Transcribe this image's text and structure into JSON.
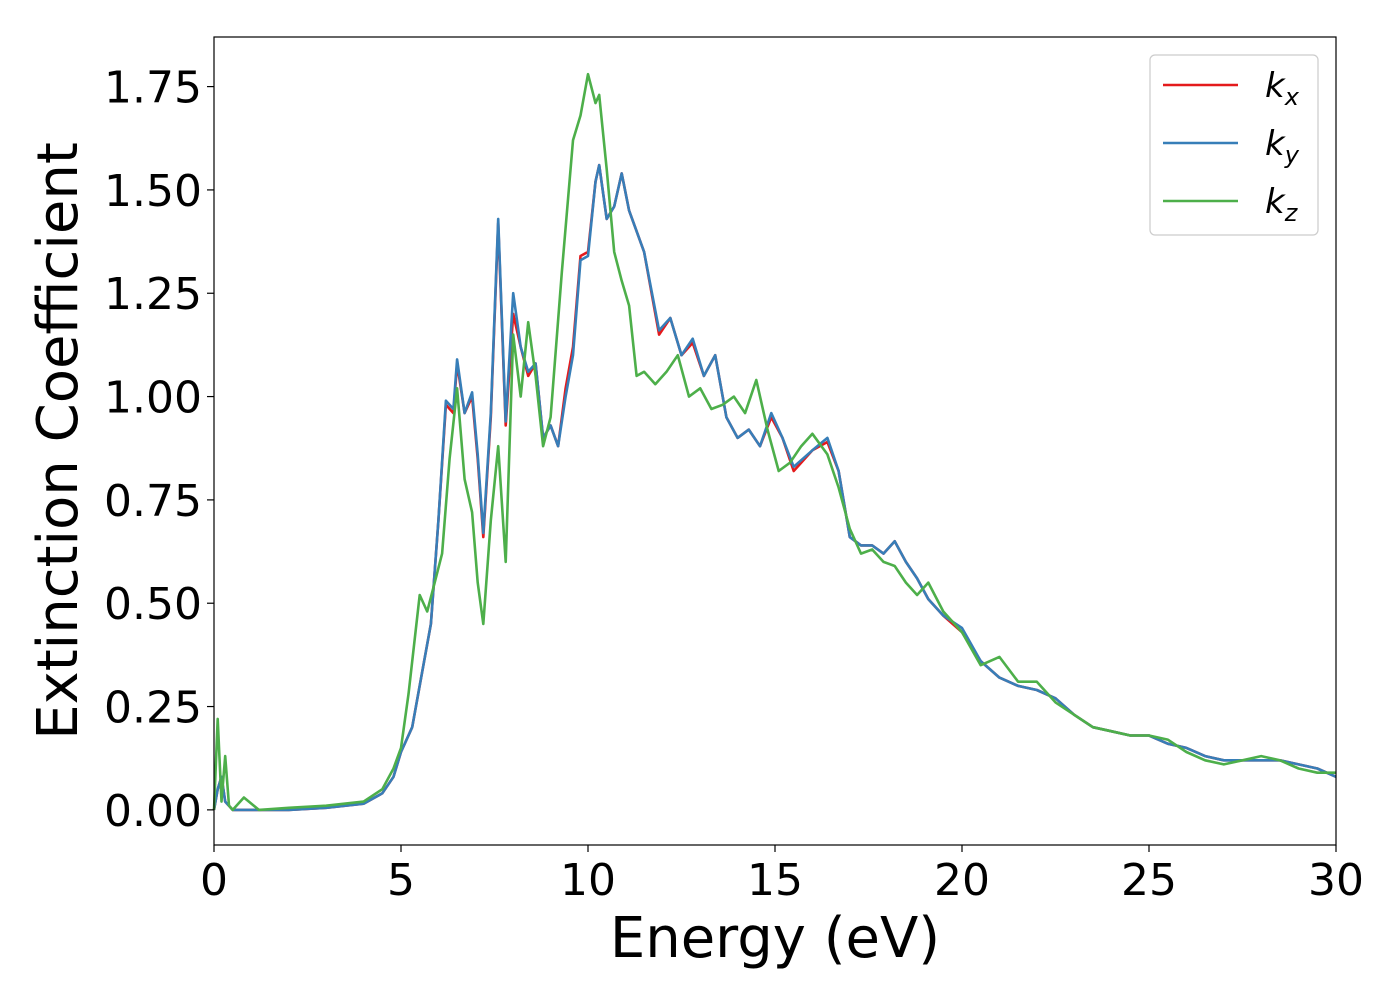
{
  "chart_data": {
    "type": "line",
    "title": "",
    "xlabel": "Energy (eV)",
    "ylabel": "Extinction Coefficient",
    "xlim": [
      0,
      30
    ],
    "ylim": [
      -0.085,
      1.87
    ],
    "xticks": [
      0,
      5,
      10,
      15,
      20,
      25,
      30
    ],
    "xtick_labels": [
      "0",
      "5",
      "10",
      "15",
      "20",
      "25",
      "30"
    ],
    "yticks": [
      0.0,
      0.25,
      0.5,
      0.75,
      1.0,
      1.25,
      1.5,
      1.75
    ],
    "ytick_labels": [
      "0.00",
      "0.25",
      "0.50",
      "0.75",
      "1.00",
      "1.25",
      "1.50",
      "1.75"
    ],
    "grid": false,
    "legend_position": "top-right",
    "series": [
      {
        "name": "k_x",
        "legend_base": "k",
        "legend_sub": "x",
        "color": "#e41a1c",
        "x": [
          0,
          0.1,
          0.2,
          0.3,
          0.5,
          1,
          2,
          3,
          4,
          4.5,
          4.8,
          5,
          5.3,
          5.6,
          5.8,
          6,
          6.2,
          6.4,
          6.5,
          6.7,
          6.9,
          7.05,
          7.2,
          7.4,
          7.6,
          7.8,
          8.0,
          8.2,
          8.4,
          8.6,
          8.8,
          9.0,
          9.2,
          9.4,
          9.6,
          9.8,
          10.0,
          10.2,
          10.3,
          10.5,
          10.7,
          10.9,
          11.1,
          11.5,
          11.9,
          12.2,
          12.5,
          12.8,
          13.1,
          13.4,
          13.7,
          14.0,
          14.3,
          14.6,
          14.9,
          15.2,
          15.5,
          16.0,
          16.4,
          16.7,
          17.0,
          17.3,
          17.6,
          17.9,
          18.2,
          18.5,
          18.8,
          19.1,
          19.5,
          20.0,
          20.5,
          21.0,
          21.5,
          22.0,
          22.5,
          23.0,
          23.5,
          24.0,
          24.5,
          25.0,
          25.5,
          26.0,
          26.5,
          27.0,
          27.5,
          28.0,
          28.5,
          29.0,
          29.5,
          30.0
        ],
        "y": [
          0.0,
          0.05,
          0.08,
          0.02,
          0.0,
          0.0,
          0.0,
          0.005,
          0.015,
          0.04,
          0.08,
          0.14,
          0.2,
          0.35,
          0.45,
          0.7,
          0.98,
          0.96,
          1.08,
          0.96,
          1.0,
          0.85,
          0.66,
          0.95,
          1.42,
          0.93,
          1.2,
          1.12,
          1.05,
          1.08,
          0.9,
          0.93,
          0.88,
          1.02,
          1.12,
          1.34,
          1.35,
          1.52,
          1.56,
          1.43,
          1.46,
          1.54,
          1.45,
          1.35,
          1.15,
          1.19,
          1.1,
          1.13,
          1.05,
          1.1,
          0.95,
          0.9,
          0.92,
          0.88,
          0.95,
          0.9,
          0.82,
          0.87,
          0.89,
          0.82,
          0.66,
          0.64,
          0.64,
          0.62,
          0.65,
          0.6,
          0.56,
          0.51,
          0.47,
          0.43,
          0.36,
          0.32,
          0.3,
          0.29,
          0.27,
          0.23,
          0.2,
          0.19,
          0.18,
          0.18,
          0.16,
          0.15,
          0.13,
          0.12,
          0.12,
          0.12,
          0.12,
          0.11,
          0.1,
          0.08
        ]
      },
      {
        "name": "k_y",
        "legend_base": "k",
        "legend_sub": "y",
        "color": "#377eb8",
        "x": [
          0,
          0.1,
          0.2,
          0.3,
          0.5,
          1,
          2,
          3,
          4,
          4.5,
          4.8,
          5,
          5.3,
          5.6,
          5.8,
          6,
          6.2,
          6.4,
          6.5,
          6.7,
          6.9,
          7.05,
          7.2,
          7.4,
          7.6,
          7.8,
          8.0,
          8.2,
          8.4,
          8.6,
          8.8,
          9.0,
          9.2,
          9.4,
          9.6,
          9.8,
          10.0,
          10.2,
          10.3,
          10.5,
          10.7,
          10.9,
          11.1,
          11.5,
          11.9,
          12.2,
          12.5,
          12.8,
          13.1,
          13.4,
          13.7,
          14.0,
          14.3,
          14.6,
          14.9,
          15.2,
          15.5,
          16.0,
          16.4,
          16.7,
          17.0,
          17.3,
          17.6,
          17.9,
          18.2,
          18.5,
          18.8,
          19.1,
          19.5,
          20.0,
          20.5,
          21.0,
          21.5,
          22.0,
          22.5,
          23.0,
          23.5,
          24.0,
          24.5,
          25.0,
          25.5,
          26.0,
          26.5,
          27.0,
          27.5,
          28.0,
          28.5,
          29.0,
          29.5,
          30.0
        ],
        "y": [
          0.0,
          0.05,
          0.08,
          0.02,
          0.0,
          0.0,
          0.0,
          0.005,
          0.015,
          0.04,
          0.08,
          0.14,
          0.2,
          0.35,
          0.45,
          0.7,
          0.99,
          0.97,
          1.09,
          0.96,
          1.01,
          0.86,
          0.67,
          0.96,
          1.43,
          0.94,
          1.25,
          1.12,
          1.06,
          1.08,
          0.9,
          0.93,
          0.88,
          1.0,
          1.1,
          1.33,
          1.34,
          1.52,
          1.56,
          1.43,
          1.46,
          1.54,
          1.45,
          1.35,
          1.16,
          1.19,
          1.1,
          1.14,
          1.05,
          1.1,
          0.95,
          0.9,
          0.92,
          0.88,
          0.96,
          0.9,
          0.83,
          0.87,
          0.9,
          0.82,
          0.66,
          0.64,
          0.64,
          0.62,
          0.65,
          0.6,
          0.56,
          0.51,
          0.47,
          0.44,
          0.36,
          0.32,
          0.3,
          0.29,
          0.27,
          0.23,
          0.2,
          0.19,
          0.18,
          0.18,
          0.16,
          0.15,
          0.13,
          0.12,
          0.12,
          0.12,
          0.12,
          0.11,
          0.1,
          0.08
        ]
      },
      {
        "name": "k_z",
        "legend_base": "k",
        "legend_sub": "z",
        "color": "#4daf4a",
        "x": [
          0,
          0.1,
          0.2,
          0.3,
          0.4,
          0.5,
          0.8,
          1.2,
          2,
          3,
          4,
          4.5,
          4.8,
          5.0,
          5.2,
          5.5,
          5.7,
          5.9,
          6.1,
          6.3,
          6.5,
          6.7,
          6.9,
          7.05,
          7.2,
          7.4,
          7.6,
          7.8,
          8.0,
          8.2,
          8.4,
          8.6,
          8.8,
          9.0,
          9.3,
          9.6,
          9.8,
          10.0,
          10.2,
          10.3,
          10.5,
          10.7,
          10.9,
          11.1,
          11.3,
          11.5,
          11.8,
          12.1,
          12.4,
          12.7,
          13.0,
          13.3,
          13.6,
          13.9,
          14.2,
          14.5,
          14.8,
          15.1,
          15.4,
          15.7,
          16.0,
          16.4,
          16.7,
          17.0,
          17.3,
          17.6,
          17.9,
          18.2,
          18.5,
          18.8,
          19.1,
          19.5,
          20.0,
          20.5,
          21.0,
          21.5,
          22.0,
          22.5,
          23.0,
          23.5,
          24.0,
          24.5,
          25.0,
          25.5,
          26.0,
          26.5,
          27.0,
          27.5,
          28.0,
          28.5,
          29.0,
          29.5,
          30.0
        ],
        "y": [
          0.0,
          0.22,
          0.02,
          0.13,
          0.01,
          0.0,
          0.03,
          0.0,
          0.005,
          0.01,
          0.02,
          0.05,
          0.1,
          0.15,
          0.28,
          0.52,
          0.48,
          0.55,
          0.62,
          0.85,
          1.02,
          0.8,
          0.72,
          0.55,
          0.45,
          0.7,
          0.88,
          0.6,
          1.15,
          1.0,
          1.18,
          1.05,
          0.88,
          0.95,
          1.3,
          1.62,
          1.68,
          1.78,
          1.71,
          1.73,
          1.55,
          1.35,
          1.28,
          1.22,
          1.05,
          1.06,
          1.03,
          1.06,
          1.1,
          1.0,
          1.02,
          0.97,
          0.98,
          1.0,
          0.96,
          1.04,
          0.92,
          0.82,
          0.84,
          0.88,
          0.91,
          0.86,
          0.78,
          0.68,
          0.62,
          0.63,
          0.6,
          0.59,
          0.55,
          0.52,
          0.55,
          0.48,
          0.43,
          0.35,
          0.37,
          0.31,
          0.31,
          0.26,
          0.23,
          0.2,
          0.19,
          0.18,
          0.18,
          0.17,
          0.14,
          0.12,
          0.11,
          0.12,
          0.13,
          0.12,
          0.1,
          0.09,
          0.09
        ]
      }
    ]
  }
}
